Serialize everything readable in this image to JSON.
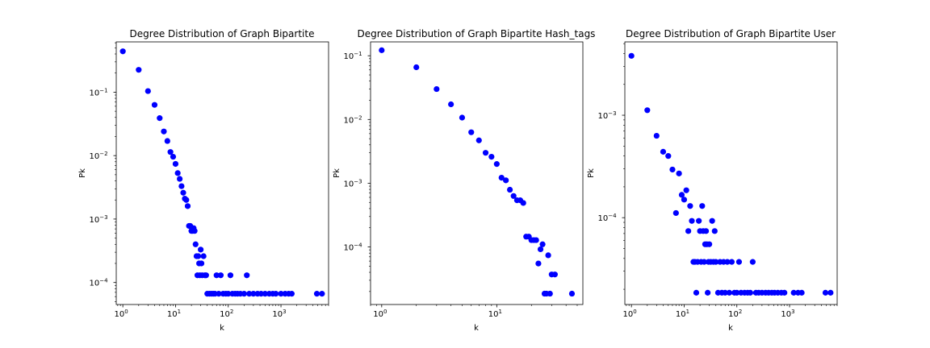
{
  "chart_data": [
    {
      "type": "scatter",
      "title": "Degree Distribution of Graph Bipartite",
      "xlabel": "k",
      "ylabel": "Pk",
      "xscale": "log",
      "yscale": "log",
      "xlim": [
        0.75,
        8000
      ],
      "ylim": [
        4.5e-05,
        0.62
      ],
      "xticks": [
        {
          "base": "10",
          "exp": "0",
          "value": 1
        },
        {
          "base": "10",
          "exp": "1",
          "value": 10
        },
        {
          "base": "10",
          "exp": "2",
          "value": 100
        },
        {
          "base": "10",
          "exp": "3",
          "value": 1000
        }
      ],
      "yticks": [
        {
          "base": "10",
          "exp": "−4",
          "value": 0.0001
        },
        {
          "base": "10",
          "exp": "−3",
          "value": 0.001
        },
        {
          "base": "10",
          "exp": "−2",
          "value": 0.01
        },
        {
          "base": "10",
          "exp": "−1",
          "value": 0.1
        }
      ],
      "marker_color": "#0000ff",
      "grid": false,
      "points": [
        [
          1,
          0.44
        ],
        [
          2,
          0.225
        ],
        [
          3,
          0.104
        ],
        [
          4,
          0.063
        ],
        [
          5,
          0.039
        ],
        [
          6,
          0.024
        ],
        [
          7,
          0.017
        ],
        [
          8,
          0.0114
        ],
        [
          9,
          0.0096
        ],
        [
          10,
          0.0074
        ],
        [
          11,
          0.0053
        ],
        [
          12,
          0.0043
        ],
        [
          13,
          0.0033
        ],
        [
          14,
          0.0026
        ],
        [
          15,
          0.0021
        ],
        [
          16,
          0.002
        ],
        [
          17,
          0.0016
        ],
        [
          18,
          0.00078
        ],
        [
          19,
          0.00078
        ],
        [
          20,
          0.00065
        ],
        [
          21,
          0.00065
        ],
        [
          22,
          0.00072
        ],
        [
          23,
          0.00065
        ],
        [
          24,
          0.0004
        ],
        [
          25,
          0.00026
        ],
        [
          26,
          0.00013
        ],
        [
          27,
          0.00026
        ],
        [
          28,
          0.0002
        ],
        [
          29,
          0.00013
        ],
        [
          30,
          0.00033
        ],
        [
          31,
          0.0002
        ],
        [
          32,
          0.00013
        ],
        [
          34,
          0.00026
        ],
        [
          36,
          0.00013
        ],
        [
          38,
          0.00013
        ],
        [
          40,
          6.65e-05
        ],
        [
          44,
          6.65e-05
        ],
        [
          48,
          6.65e-05
        ],
        [
          52,
          6.65e-05
        ],
        [
          56,
          6.65e-05
        ],
        [
          60,
          0.00013
        ],
        [
          66,
          6.65e-05
        ],
        [
          72,
          0.00013
        ],
        [
          80,
          6.65e-05
        ],
        [
          90,
          6.65e-05
        ],
        [
          100,
          6.65e-05
        ],
        [
          110,
          0.00013
        ],
        [
          120,
          6.65e-05
        ],
        [
          135,
          6.65e-05
        ],
        [
          150,
          6.65e-05
        ],
        [
          170,
          6.65e-05
        ],
        [
          200,
          6.65e-05
        ],
        [
          225,
          0.00013
        ],
        [
          250,
          6.65e-05
        ],
        [
          300,
          6.65e-05
        ],
        [
          360,
          6.65e-05
        ],
        [
          420,
          6.65e-05
        ],
        [
          500,
          6.65e-05
        ],
        [
          600,
          6.65e-05
        ],
        [
          700,
          6.65e-05
        ],
        [
          800,
          6.65e-05
        ],
        [
          1000,
          6.65e-05
        ],
        [
          1200,
          6.65e-05
        ],
        [
          1400,
          6.65e-05
        ],
        [
          1600,
          6.65e-05
        ],
        [
          4800,
          6.65e-05
        ],
        [
          6000,
          6.65e-05
        ]
      ]
    },
    {
      "type": "scatter",
      "title": "Degree Distribution of Graph Bipartite Hash_tags",
      "xlabel": "k",
      "ylabel": "Pk",
      "xscale": "log",
      "yscale": "log",
      "xlim": [
        0.8,
        56
      ],
      "ylim": [
        1.25e-05,
        0.165
      ],
      "xticks": [
        {
          "base": "10",
          "exp": "0",
          "value": 1
        },
        {
          "base": "10",
          "exp": "1",
          "value": 10
        }
      ],
      "yticks": [
        {
          "base": "10",
          "exp": "−4",
          "value": 0.0001
        },
        {
          "base": "10",
          "exp": "−3",
          "value": 0.001
        },
        {
          "base": "10",
          "exp": "−2",
          "value": 0.01
        },
        {
          "base": "10",
          "exp": "−1",
          "value": 0.1
        }
      ],
      "marker_color": "#0000ff",
      "grid": false,
      "points": [
        [
          1,
          0.122
        ],
        [
          2,
          0.066
        ],
        [
          3,
          0.03
        ],
        [
          4,
          0.0173
        ],
        [
          5,
          0.0107
        ],
        [
          6,
          0.0063
        ],
        [
          7,
          0.0047
        ],
        [
          8,
          0.003
        ],
        [
          9,
          0.0026
        ],
        [
          10,
          0.002
        ],
        [
          11,
          0.00122
        ],
        [
          12,
          0.00111
        ],
        [
          13,
          0.00079
        ],
        [
          14,
          0.00063
        ],
        [
          15,
          0.00054
        ],
        [
          16,
          0.00054
        ],
        [
          17,
          0.00049
        ],
        [
          18,
          0.000145
        ],
        [
          19,
          0.000145
        ],
        [
          20,
          0.000128
        ],
        [
          21,
          0.000128
        ],
        [
          22,
          0.000128
        ],
        [
          23,
          5.5e-05
        ],
        [
          24,
          9.2e-05
        ],
        [
          25,
          0.00011
        ],
        [
          26,
          1.85e-05
        ],
        [
          27,
          1.85e-05
        ],
        [
          28,
          7.4e-05
        ],
        [
          29,
          1.85e-05
        ],
        [
          30,
          3.7e-05
        ],
        [
          32,
          3.7e-05
        ],
        [
          45,
          1.85e-05
        ]
      ]
    },
    {
      "type": "scatter",
      "title": "Degree Distribution of Graph Bipartite User",
      "xlabel": "k",
      "ylabel": "Pk",
      "xscale": "log",
      "yscale": "log",
      "xlim": [
        0.75,
        8000
      ],
      "ylim": [
        1.42e-05,
        0.0052
      ],
      "xticks": [
        {
          "base": "10",
          "exp": "0",
          "value": 1
        },
        {
          "base": "10",
          "exp": "1",
          "value": 10
        },
        {
          "base": "10",
          "exp": "2",
          "value": 100
        },
        {
          "base": "10",
          "exp": "3",
          "value": 1000
        }
      ],
      "yticks": [
        {
          "base": "10",
          "exp": "−4",
          "value": 0.0001
        },
        {
          "base": "10",
          "exp": "−3",
          "value": 0.001
        }
      ],
      "marker_color": "#0000ff",
      "grid": false,
      "points": [
        [
          1,
          0.0038
        ],
        [
          2,
          0.00112
        ],
        [
          3,
          0.00063
        ],
        [
          4,
          0.00044
        ],
        [
          5,
          0.0004
        ],
        [
          6,
          0.000295
        ],
        [
          7,
          0.000111
        ],
        [
          8,
          0.00027
        ],
        [
          9,
          0.000167
        ],
        [
          10,
          0.00015
        ],
        [
          11,
          0.000185
        ],
        [
          12,
          7.4e-05
        ],
        [
          13,
          0.00013
        ],
        [
          14,
          9.3e-05
        ],
        [
          15,
          3.7e-05
        ],
        [
          16,
          3.7e-05
        ],
        [
          17,
          1.85e-05
        ],
        [
          18,
          3.7e-05
        ],
        [
          19,
          9.3e-05
        ],
        [
          20,
          7.4e-05
        ],
        [
          21,
          3.7e-05
        ],
        [
          22,
          0.00013
        ],
        [
          23,
          7.4e-05
        ],
        [
          24,
          3.7e-05
        ],
        [
          25,
          5.5e-05
        ],
        [
          26,
          7.4e-05
        ],
        [
          27,
          5.5e-05
        ],
        [
          28,
          1.85e-05
        ],
        [
          29,
          3.7e-05
        ],
        [
          30,
          5.5e-05
        ],
        [
          32,
          3.7e-05
        ],
        [
          34,
          9.3e-05
        ],
        [
          36,
          3.7e-05
        ],
        [
          38,
          7.4e-05
        ],
        [
          40,
          3.7e-05
        ],
        [
          44,
          1.85e-05
        ],
        [
          48,
          3.7e-05
        ],
        [
          52,
          1.85e-05
        ],
        [
          56,
          3.7e-05
        ],
        [
          60,
          1.85e-05
        ],
        [
          66,
          3.7e-05
        ],
        [
          72,
          1.85e-05
        ],
        [
          80,
          3.7e-05
        ],
        [
          90,
          1.85e-05
        ],
        [
          100,
          1.85e-05
        ],
        [
          110,
          3.7e-05
        ],
        [
          120,
          1.85e-05
        ],
        [
          140,
          1.85e-05
        ],
        [
          160,
          1.85e-05
        ],
        [
          180,
          1.85e-05
        ],
        [
          200,
          3.7e-05
        ],
        [
          230,
          1.85e-05
        ],
        [
          260,
          1.85e-05
        ],
        [
          300,
          1.85e-05
        ],
        [
          350,
          1.85e-05
        ],
        [
          400,
          1.85e-05
        ],
        [
          460,
          1.85e-05
        ],
        [
          520,
          1.85e-05
        ],
        [
          600,
          1.85e-05
        ],
        [
          700,
          1.85e-05
        ],
        [
          800,
          1.85e-05
        ],
        [
          1200,
          1.85e-05
        ],
        [
          1450,
          1.85e-05
        ],
        [
          1700,
          1.85e-05
        ],
        [
          4800,
          1.85e-05
        ],
        [
          6000,
          1.85e-05
        ]
      ]
    }
  ]
}
